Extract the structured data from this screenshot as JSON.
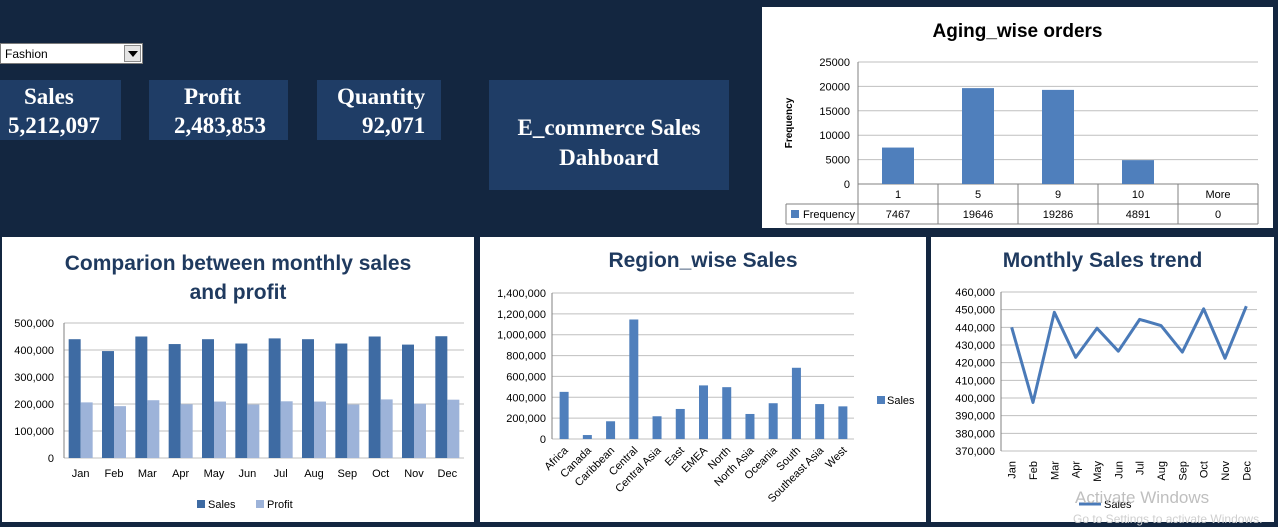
{
  "filter": {
    "value": "Fashion"
  },
  "kpis": {
    "sales": {
      "label": "Sales",
      "value": "5,212,097"
    },
    "profit": {
      "label": "Profit",
      "value": "2,483,853"
    },
    "quantity": {
      "label": "Quantity",
      "value": "92,071"
    }
  },
  "dashboard_title": {
    "line1": "E_commerce Sales",
    "line2": "Dahboard"
  },
  "watermark": {
    "line1": "Activate Windows",
    "line2": "Go to Settings to activate Windows."
  },
  "colors": {
    "navy": "#132640",
    "tile": "#1f3d66",
    "sales": "#3e6ba3",
    "profit": "#9db3d9",
    "bar": "#4f7fbc",
    "title": "#1f3a5f"
  },
  "chart_data": [
    {
      "id": "aging",
      "type": "bar",
      "title": "Aging_wise orders",
      "ylabel": "Frequency",
      "categories": [
        "1",
        "5",
        "9",
        "10",
        "More"
      ],
      "series": [
        {
          "name": "Frequency",
          "values": [
            7467,
            19646,
            19286,
            4891,
            0
          ]
        }
      ],
      "yticks": [
        "0",
        "5000",
        "10000",
        "15000",
        "20000",
        "25000"
      ],
      "ylim": [
        0,
        25000
      ],
      "data_table": true,
      "grid": true
    },
    {
      "id": "compare",
      "type": "bar",
      "title_lines": [
        "Comparion between monthly sales",
        "and profit"
      ],
      "categories": [
        "Jan",
        "Feb",
        "Mar",
        "Apr",
        "May",
        "Jun",
        "Jul",
        "Aug",
        "Sep",
        "Oct",
        "Nov",
        "Dec"
      ],
      "series": [
        {
          "name": "Sales",
          "values": [
            440000,
            396000,
            450000,
            422000,
            440000,
            424000,
            443000,
            440000,
            424000,
            450000,
            420000,
            451000
          ]
        },
        {
          "name": "Profit",
          "values": [
            206000,
            192000,
            214000,
            199000,
            209000,
            198000,
            210000,
            209000,
            198000,
            217000,
            201000,
            216000
          ]
        }
      ],
      "yticks": [
        "0",
        "100,000",
        "200,000",
        "300,000",
        "400,000",
        "500,000"
      ],
      "ylim": [
        0,
        500000
      ],
      "legend": "bottom",
      "grid": true
    },
    {
      "id": "region",
      "type": "bar",
      "title": "Region_wise Sales",
      "categories": [
        "Africa",
        "Canada",
        "Caribbean",
        "Central",
        "Central Asia",
        "East",
        "EMEA",
        "North",
        "North Asia",
        "Oceania",
        "South",
        "Southeast Asia",
        "West"
      ],
      "series": [
        {
          "name": "Sales",
          "values": [
            452000,
            38000,
            170000,
            1146000,
            218000,
            288000,
            514000,
            497000,
            240000,
            343000,
            683000,
            335000,
            313000
          ]
        }
      ],
      "yticks": [
        "0",
        "200,000",
        "400,000",
        "600,000",
        "800,000",
        "1,000,000",
        "1,200,000",
        "1,400,000"
      ],
      "ylim": [
        0,
        1400000
      ],
      "legend": "right",
      "grid": true
    },
    {
      "id": "trend",
      "type": "line",
      "title": "Monthly Sales trend",
      "categories": [
        "Jan",
        "Feb",
        "Mar",
        "Apr",
        "May",
        "Jun",
        "Jul",
        "Aug",
        "Sep",
        "Oct",
        "Nov",
        "Dec"
      ],
      "series": [
        {
          "name": "Sales",
          "values": [
            440000,
            397500,
            448500,
            423000,
            439500,
            426500,
            444500,
            441000,
            426000,
            450500,
            422500,
            452000
          ]
        }
      ],
      "yticks": [
        "370,000",
        "380,000",
        "390,000",
        "400,000",
        "410,000",
        "420,000",
        "430,000",
        "440,000",
        "450,000",
        "460,000"
      ],
      "ylim": [
        370000,
        460000
      ],
      "legend": "bottom",
      "grid": true
    }
  ]
}
